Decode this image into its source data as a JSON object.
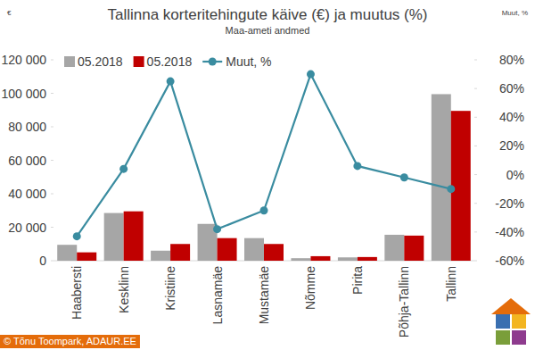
{
  "chart_data": {
    "type": "bar",
    "title": "Tallinna korteritehingute käive (€) ja muutus (%)",
    "subtitle": "Maa-ameti andmed",
    "ylabel": "€",
    "y2label": "Muut, %",
    "source": "© Tõnu Toompark, ADAUR.EE",
    "categories": [
      "Haabersti",
      "Kesklinn",
      "Kristiine",
      "Lasnamäe",
      "Mustamäe",
      "Nõmme",
      "Pirita",
      "Põhja-Tallinn",
      "Tallinn"
    ],
    "series": [
      {
        "name": "05.2018",
        "type": "bar",
        "color": "#a6a6a6",
        "values": [
          9500,
          28500,
          6000,
          22000,
          13500,
          1500,
          2000,
          15500,
          99500
        ]
      },
      {
        "name": "05.2018",
        "type": "bar",
        "color": "#c00000",
        "values": [
          5000,
          29500,
          10000,
          13500,
          10000,
          2700,
          2200,
          15000,
          89500
        ]
      },
      {
        "name": "Muut, %",
        "type": "line",
        "axis": "y2",
        "color": "#3a8ca0",
        "marker": "circle",
        "values": [
          -43,
          4,
          65,
          -38,
          -25,
          70,
          6,
          -2,
          -10
        ]
      }
    ],
    "ylim": [
      0,
      120000
    ],
    "yticks": [
      0,
      {
        "value": 20000,
        "label": "20 000"
      },
      {
        "value": 40000,
        "label": "40 000"
      },
      {
        "value": 60000,
        "label": "60 000"
      },
      {
        "value": 80000,
        "label": "80 000"
      },
      {
        "value": 100000,
        "label": "100 000"
      },
      {
        "value": 120000,
        "label": "120 000"
      }
    ],
    "y2lim": [
      -60,
      80
    ],
    "y2ticks": [
      {
        "value": -60,
        "label": "-60%"
      },
      {
        "value": -40,
        "label": "-40%"
      },
      {
        "value": -20,
        "label": "-20%"
      },
      {
        "value": 0,
        "label": "0%"
      },
      {
        "value": 20,
        "label": "20%"
      },
      {
        "value": 40,
        "label": "40%"
      },
      {
        "value": 60,
        "label": "60%"
      },
      {
        "value": 80,
        "label": "80%"
      }
    ],
    "grid": false,
    "legend": "top"
  }
}
